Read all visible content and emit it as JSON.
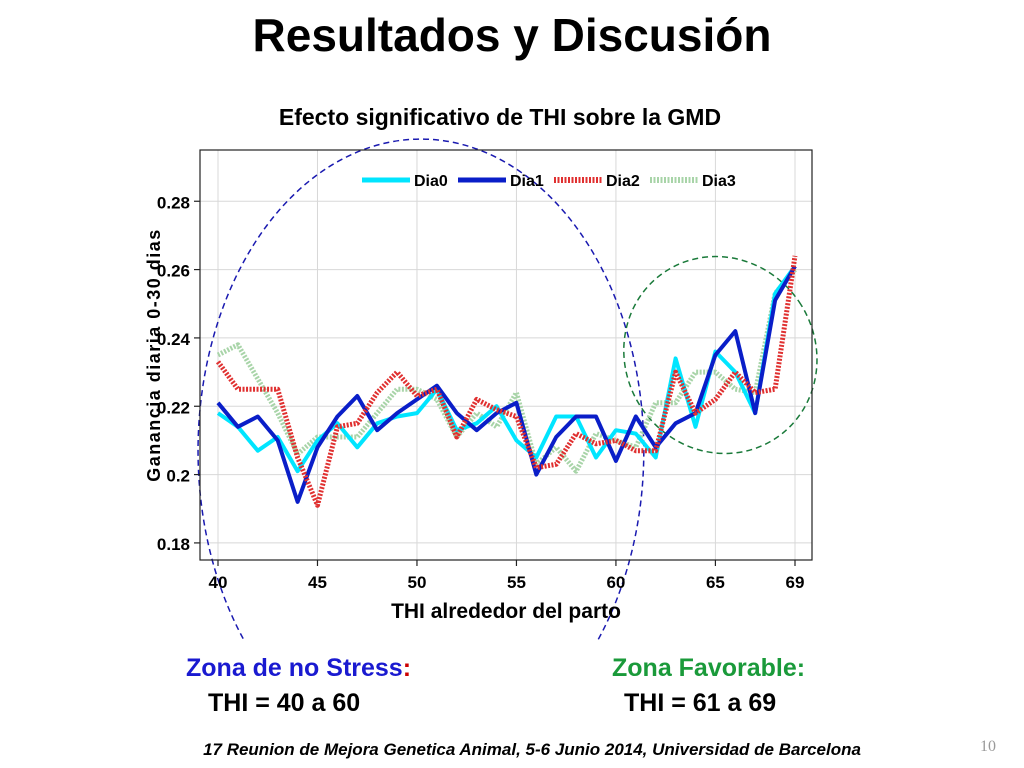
{
  "slide": {
    "title": "Resultados y Discusión",
    "footer": "17 Reunion de Mejora Genetica Animal, 5-6 Junio 2014, Universidad de Barcelona",
    "page_number": "10"
  },
  "zones": {
    "no_stress": {
      "label": "Zona de no Stress",
      "colon": ":",
      "range": "THI = 40 a 60",
      "color": "#1a1ad0",
      "colon_color": "#cc0000"
    },
    "favorable": {
      "label": "Zona Favorable:",
      "range": "THI = 61 a 69",
      "color": "#1a9a3a"
    }
  },
  "chart_data": {
    "type": "line",
    "title": "Efecto  significativo de THI sobre la GMD",
    "xlabel": "THI alrededor del parto",
    "ylabel": "Ganancia diaria  0-30 dias",
    "xlim": [
      40,
      69
    ],
    "ylim": [
      0.175,
      0.295
    ],
    "xticks": [
      40,
      45,
      50,
      55,
      60,
      65,
      69
    ],
    "yticks": [
      0.18,
      0.2,
      0.22,
      0.24,
      0.26,
      0.28
    ],
    "ytick_labels": [
      "0.18",
      "0.2",
      "0.22",
      "0.24",
      "0.26",
      "0.28"
    ],
    "grid": true,
    "legend_position": "top",
    "x": [
      40,
      41,
      42,
      43,
      44,
      45,
      46,
      47,
      48,
      49,
      50,
      51,
      52,
      53,
      54,
      55,
      56,
      57,
      58,
      59,
      60,
      61,
      62,
      63,
      64,
      65,
      66,
      67,
      68,
      69
    ],
    "series": [
      {
        "name": "Dia0",
        "color": "#00e5ff",
        "style": "solid",
        "values": [
          0.218,
          0.214,
          0.207,
          0.211,
          0.201,
          0.21,
          0.215,
          0.208,
          0.215,
          0.217,
          0.218,
          0.225,
          0.213,
          0.215,
          0.22,
          0.21,
          0.205,
          0.217,
          0.217,
          0.205,
          0.213,
          0.212,
          0.205,
          0.234,
          0.214,
          0.236,
          0.23,
          0.218,
          0.253,
          0.261
        ]
      },
      {
        "name": "Dia1",
        "color": "#0a1ec8",
        "style": "solid",
        "values": [
          0.221,
          0.214,
          0.217,
          0.21,
          0.192,
          0.208,
          0.217,
          0.223,
          0.213,
          0.218,
          0.222,
          0.226,
          0.218,
          0.213,
          0.218,
          0.221,
          0.2,
          0.211,
          0.217,
          0.217,
          0.204,
          0.217,
          0.208,
          0.215,
          0.218,
          0.235,
          0.242,
          0.218,
          0.251,
          0.261
        ]
      },
      {
        "name": "Dia2",
        "color": "#e03030",
        "style": "dashed",
        "values": [
          0.233,
          0.225,
          0.225,
          0.225,
          0.205,
          0.191,
          0.214,
          0.215,
          0.224,
          0.23,
          0.223,
          0.225,
          0.211,
          0.222,
          0.219,
          0.217,
          0.202,
          0.203,
          0.212,
          0.209,
          0.21,
          0.207,
          0.207,
          0.23,
          0.218,
          0.222,
          0.23,
          0.224,
          0.225,
          0.264
        ]
      },
      {
        "name": "Dia3",
        "color": "#a8d4a8",
        "style": "dashed",
        "values": [
          0.235,
          0.238,
          0.228,
          0.218,
          0.206,
          0.211,
          0.211,
          0.211,
          0.218,
          0.225,
          0.225,
          0.222,
          0.211,
          0.218,
          0.214,
          0.224,
          0.203,
          0.208,
          0.201,
          0.212,
          0.21,
          0.208,
          0.221,
          0.221,
          0.23,
          0.23,
          0.225,
          0.224,
          0.253,
          0.26
        ]
      }
    ]
  }
}
